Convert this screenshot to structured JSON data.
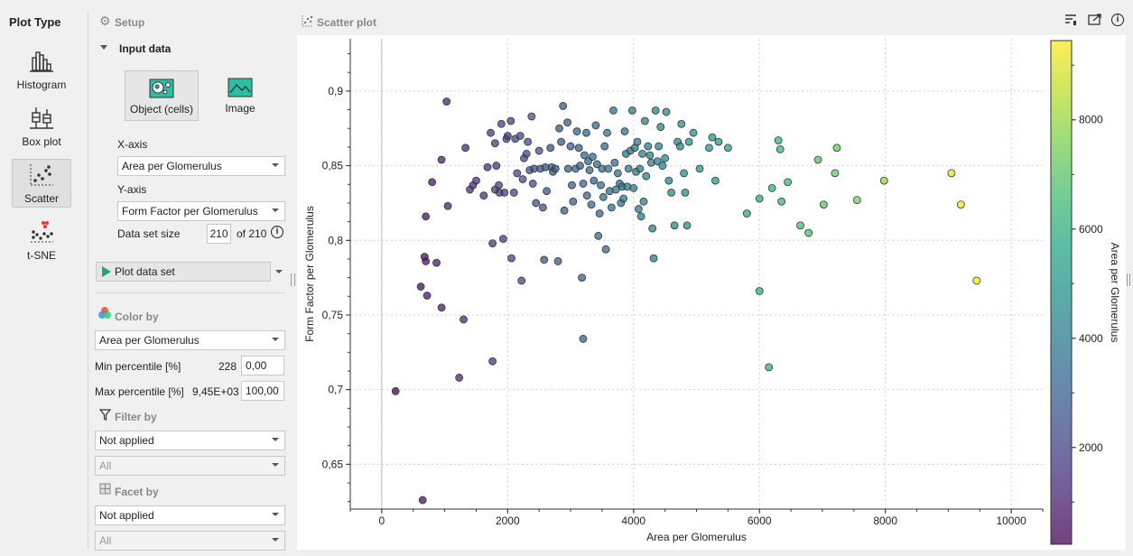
{
  "sidebar": {
    "title": "Plot Type",
    "items": [
      {
        "label": "Histogram",
        "icon": "histogram-icon"
      },
      {
        "label": "Box plot",
        "icon": "boxplot-icon"
      },
      {
        "label": "Scatter",
        "icon": "scatter-icon",
        "selected": true
      },
      {
        "label": "t-SNE",
        "icon": "tsne-icon"
      }
    ]
  },
  "setup": {
    "title": "Setup",
    "input_data_label": "Input data",
    "source_options": [
      {
        "label": "Object (cells)",
        "selected": true
      },
      {
        "label": "Image"
      }
    ],
    "x_axis_label": "X-axis",
    "x_axis_value": "Area per Glomerulus",
    "y_axis_label": "Y-axis",
    "y_axis_value": "Form Factor per Glomerulus",
    "dataset_size_label": "Data set size",
    "dataset_size_value": "210",
    "dataset_size_total": "of 210",
    "plot_button": "Plot data set",
    "color_by_label": "Color by",
    "color_by_value": "Area per Glomerulus",
    "min_percentile_label": "Min percentile [%]",
    "min_percentile_readout": "228",
    "min_percentile_value": "0,00",
    "max_percentile_label": "Max percentile [%]",
    "max_percentile_readout": "9,45E+03",
    "max_percentile_value": "100,00",
    "filter_by_label": "Filter by",
    "filter_by_value": "Not applied",
    "filter_by_sub": "All",
    "facet_by_label": "Facet by",
    "facet_by_value": "Not applied",
    "facet_by_sub": "All"
  },
  "plot": {
    "title": "Scatter plot"
  },
  "chart_data": {
    "type": "scatter",
    "xlabel": "Area per Glomerulus",
    "ylabel": "Form Factor per Glomerulus",
    "colorbar_label": "Area per Glomerulus",
    "xlim": [
      -500,
      10500
    ],
    "ylim": [
      0.62,
      0.935
    ],
    "xticks": [
      0,
      2000,
      4000,
      6000,
      8000,
      10000
    ],
    "xtick_labels": [
      "0",
      "2000",
      "4000",
      "6000",
      "8000",
      "10000"
    ],
    "yticks": [
      0.65,
      0.7,
      0.75,
      0.8,
      0.85,
      0.9
    ],
    "ytick_labels": [
      "0,65",
      "0,7",
      "0,75",
      "0,8",
      "0,85",
      "0,9"
    ],
    "colorbar_ticks": [
      2000,
      4000,
      6000,
      8000
    ],
    "colorbar_range": [
      228,
      9450
    ],
    "grid": true,
    "colormap": "viridis",
    "points": [
      [
        220,
        0.699
      ],
      [
        650,
        0.626
      ],
      [
        620,
        0.769
      ],
      [
        680,
        0.789
      ],
      [
        700,
        0.786
      ],
      [
        720,
        0.763
      ],
      [
        700,
        0.816
      ],
      [
        800,
        0.839
      ],
      [
        870,
        0.785
      ],
      [
        950,
        0.755
      ],
      [
        950,
        0.854
      ],
      [
        1030,
        0.893
      ],
      [
        1050,
        0.823
      ],
      [
        1300,
        0.747
      ],
      [
        1230,
        0.708
      ],
      [
        1330,
        0.862
      ],
      [
        1400,
        0.834
      ],
      [
        1450,
        0.837
      ],
      [
        1500,
        0.84
      ],
      [
        1620,
        0.83
      ],
      [
        1680,
        0.849
      ],
      [
        1730,
        0.872
      ],
      [
        1760,
        0.719
      ],
      [
        1760,
        0.798
      ],
      [
        1800,
        0.834
      ],
      [
        1800,
        0.865
      ],
      [
        1820,
        0.85
      ],
      [
        1860,
        0.837
      ],
      [
        1870,
        0.832
      ],
      [
        1900,
        0.878
      ],
      [
        1930,
        0.801
      ],
      [
        1950,
        0.832
      ],
      [
        1980,
        0.868
      ],
      [
        2000,
        0.87
      ],
      [
        2050,
        0.88
      ],
      [
        2060,
        0.788
      ],
      [
        2100,
        0.832
      ],
      [
        2120,
        0.868
      ],
      [
        2150,
        0.845
      ],
      [
        2200,
        0.87
      ],
      [
        2220,
        0.773
      ],
      [
        2240,
        0.841
      ],
      [
        2260,
        0.855
      ],
      [
        2300,
        0.858
      ],
      [
        2320,
        0.866
      ],
      [
        2350,
        0.847
      ],
      [
        2380,
        0.883
      ],
      [
        2400,
        0.838
      ],
      [
        2420,
        0.848
      ],
      [
        2450,
        0.825
      ],
      [
        2500,
        0.86
      ],
      [
        2520,
        0.848
      ],
      [
        2560,
        0.822
      ],
      [
        2580,
        0.787
      ],
      [
        2600,
        0.849
      ],
      [
        2620,
        0.833
      ],
      [
        2680,
        0.862
      ],
      [
        2700,
        0.849
      ],
      [
        2720,
        0.846
      ],
      [
        2760,
        0.848
      ],
      [
        2800,
        0.786
      ],
      [
        2820,
        0.875
      ],
      [
        2850,
        0.866
      ],
      [
        2880,
        0.89
      ],
      [
        2900,
        0.82
      ],
      [
        2950,
        0.879
      ],
      [
        2960,
        0.848
      ],
      [
        3000,
        0.863
      ],
      [
        3020,
        0.837
      ],
      [
        3040,
        0.826
      ],
      [
        3080,
        0.848
      ],
      [
        3100,
        0.873
      ],
      [
        3130,
        0.862
      ],
      [
        3150,
        0.85
      ],
      [
        3180,
        0.775
      ],
      [
        3200,
        0.838
      ],
      [
        3200,
        0.734
      ],
      [
        3220,
        0.857
      ],
      [
        3250,
        0.872
      ],
      [
        3260,
        0.83
      ],
      [
        3280,
        0.853
      ],
      [
        3300,
        0.847
      ],
      [
        3330,
        0.824
      ],
      [
        3350,
        0.856
      ],
      [
        3370,
        0.84
      ],
      [
        3400,
        0.877
      ],
      [
        3420,
        0.851
      ],
      [
        3440,
        0.803
      ],
      [
        3460,
        0.818
      ],
      [
        3480,
        0.837
      ],
      [
        3500,
        0.848
      ],
      [
        3520,
        0.829
      ],
      [
        3540,
        0.863
      ],
      [
        3560,
        0.794
      ],
      [
        3580,
        0.872
      ],
      [
        3600,
        0.848
      ],
      [
        3620,
        0.833
      ],
      [
        3650,
        0.822
      ],
      [
        3680,
        0.887
      ],
      [
        3700,
        0.852
      ],
      [
        3720,
        0.834
      ],
      [
        3750,
        0.845
      ],
      [
        3780,
        0.838
      ],
      [
        3800,
        0.825
      ],
      [
        3820,
        0.836
      ],
      [
        3840,
        0.828
      ],
      [
        3860,
        0.873
      ],
      [
        3880,
        0.858
      ],
      [
        3900,
        0.836
      ],
      [
        3920,
        0.848
      ],
      [
        3950,
        0.86
      ],
      [
        3980,
        0.887
      ],
      [
        4000,
        0.835
      ],
      [
        4020,
        0.862
      ],
      [
        4040,
        0.846
      ],
      [
        4060,
        0.866
      ],
      [
        4080,
        0.821
      ],
      [
        4100,
        0.848
      ],
      [
        4120,
        0.816
      ],
      [
        4140,
        0.858
      ],
      [
        4160,
        0.826
      ],
      [
        4180,
        0.88
      ],
      [
        4200,
        0.843
      ],
      [
        4230,
        0.863
      ],
      [
        4260,
        0.857
      ],
      [
        4280,
        0.852
      ],
      [
        4300,
        0.808
      ],
      [
        4320,
        0.788
      ],
      [
        4350,
        0.887
      ],
      [
        4380,
        0.853
      ],
      [
        4400,
        0.863
      ],
      [
        4430,
        0.876
      ],
      [
        4460,
        0.85
      ],
      [
        4500,
        0.855
      ],
      [
        4520,
        0.886
      ],
      [
        4560,
        0.84
      ],
      [
        4600,
        0.832
      ],
      [
        4650,
        0.81
      ],
      [
        4700,
        0.866
      ],
      [
        4740,
        0.863
      ],
      [
        4760,
        0.878
      ],
      [
        4800,
        0.845
      ],
      [
        4820,
        0.832
      ],
      [
        4850,
        0.81
      ],
      [
        4880,
        0.866
      ],
      [
        4950,
        0.872
      ],
      [
        5050,
        0.848
      ],
      [
        5200,
        0.862
      ],
      [
        5250,
        0.869
      ],
      [
        5300,
        0.84
      ],
      [
        5350,
        0.866
      ],
      [
        5500,
        0.862
      ],
      [
        5800,
        0.818
      ],
      [
        6000,
        0.828
      ],
      [
        6000,
        0.766
      ],
      [
        6150,
        0.715
      ],
      [
        6200,
        0.835
      ],
      [
        6300,
        0.867
      ],
      [
        6330,
        0.861
      ],
      [
        6350,
        0.826
      ],
      [
        6450,
        0.839
      ],
      [
        6650,
        0.81
      ],
      [
        6780,
        0.805
      ],
      [
        6930,
        0.854
      ],
      [
        7020,
        0.824
      ],
      [
        7200,
        0.845
      ],
      [
        7230,
        0.862
      ],
      [
        7550,
        0.827
      ],
      [
        7980,
        0.84
      ],
      [
        9050,
        0.845
      ],
      [
        9200,
        0.824
      ],
      [
        9450,
        0.773
      ]
    ]
  }
}
